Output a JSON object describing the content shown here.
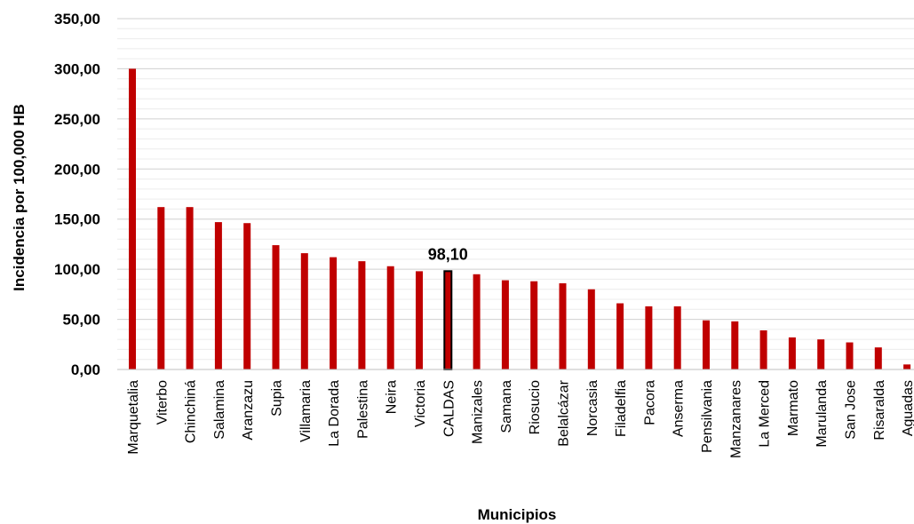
{
  "chart_data": {
    "type": "bar",
    "title": "",
    "xlabel": "Municipios",
    "ylabel": "Incidencia por 100,000 HB",
    "ylim": [
      0,
      350
    ],
    "yticks": [
      "0,00",
      "50,00",
      "100,00",
      "150,00",
      "200,00",
      "250,00",
      "300,00",
      "350,00"
    ],
    "ytick_values": [
      0,
      50,
      100,
      150,
      200,
      250,
      300,
      350
    ],
    "grid": true,
    "categories": [
      "Marquetalia",
      "Viterbo",
      "Chinchiná",
      "Salamina",
      "Aranzazu",
      "Supia",
      "Villamaria",
      "La Dorada",
      "Palestina",
      "Neira",
      "Victoria",
      "CALDAS",
      "Manizales",
      "Samana",
      "Riosucio",
      "Belalcázar",
      "Norcasia",
      "Filadelfia",
      "Pacora",
      "Anserma",
      "Pensilvania",
      "Manzanares",
      "La Merced",
      "Marmato",
      "Marulanda",
      "San Jose",
      "Risaralda",
      "Aguadas"
    ],
    "values": [
      300,
      162,
      162,
      147,
      146,
      124,
      116,
      112,
      108,
      103,
      98,
      98.1,
      95,
      89,
      88,
      86,
      80,
      66,
      63,
      63,
      49,
      48,
      39,
      32,
      30,
      27,
      22,
      5
    ],
    "highlight_category": "CALDAS",
    "highlight_label": "98,10",
    "colors": {
      "bar": "#c00000",
      "highlight": "#000000",
      "grid": "#d9d9d9"
    }
  }
}
